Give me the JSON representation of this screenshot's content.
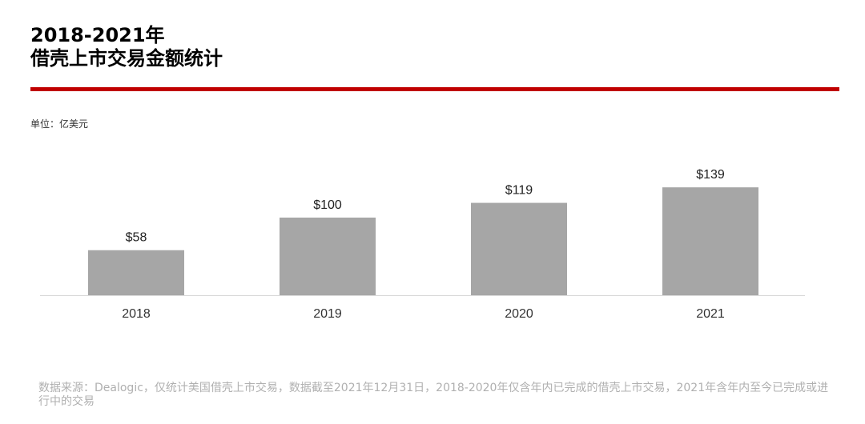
{
  "title": {
    "line1": "2018-2021年",
    "line2": "借壳上市交易金额统计"
  },
  "unit_label": "单位：亿美元",
  "source_note": "数据来源：Dealogic，仅统计美国借壳上市交易，数据截至2021年12月31日，2018-2020年仅含年内已完成的借壳上市交易，2021年含年内至今已完成或进行中的交易",
  "colors": {
    "bar": "#a6a6a6",
    "title_rule": "#c00000",
    "axis": "#d9d9d9",
    "source_text": "#b0b0b0"
  },
  "chart_data": {
    "type": "bar",
    "title": "2018-2021年 借壳上市交易金额统计",
    "categories": [
      "2018",
      "2019",
      "2020",
      "2021"
    ],
    "values": [
      58,
      100,
      119,
      139
    ],
    "data_labels": [
      "$58",
      "$100",
      "$119",
      "$139"
    ],
    "xlabel": "",
    "ylabel": "",
    "ylim": [
      0,
      150
    ],
    "grid": false,
    "legend": "none"
  }
}
